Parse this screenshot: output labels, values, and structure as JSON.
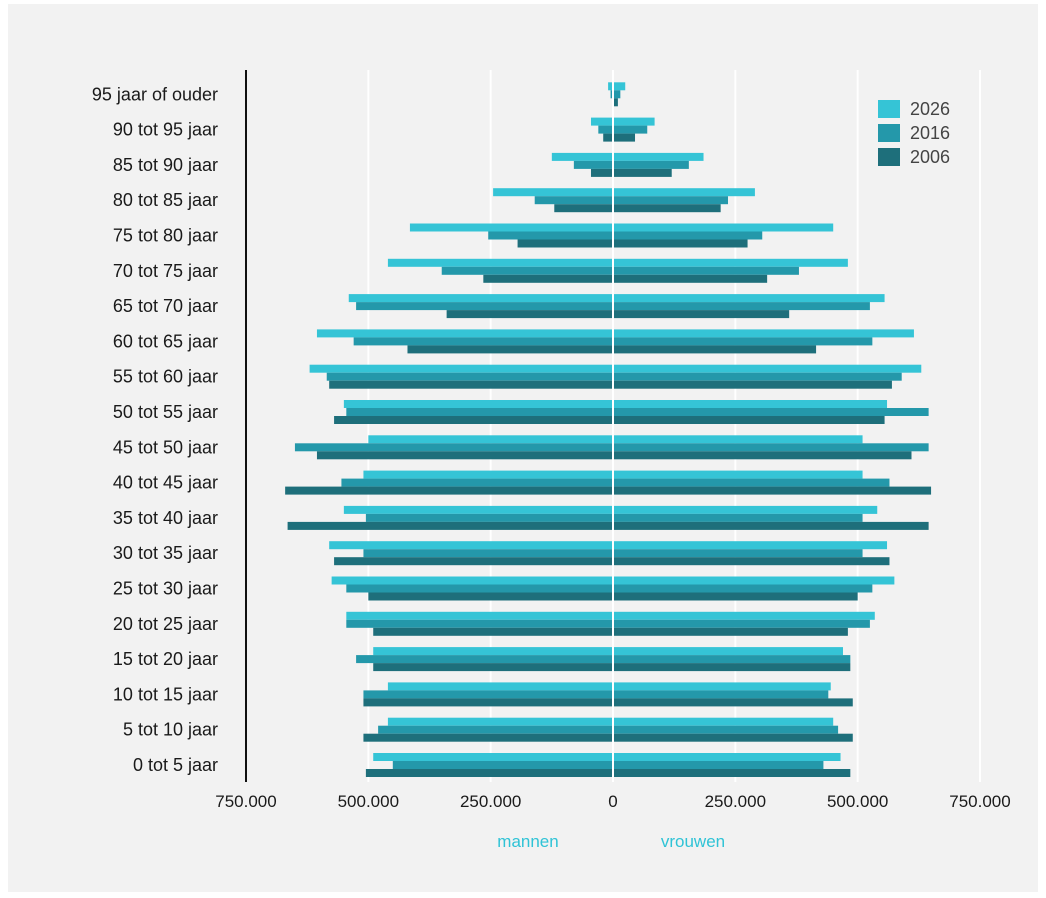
{
  "chart_data": {
    "type": "bar",
    "orientation": "horizontal",
    "layout": "population-pyramid",
    "categories": [
      "0 tot 5 jaar",
      "5 tot 10 jaar",
      "10 tot 15 jaar",
      "15 tot 20 jaar",
      "20 tot 25 jaar",
      "25 tot 30 jaar",
      "30 tot 35 jaar",
      "35 tot 40 jaar",
      "40 tot 45 jaar",
      "45 tot 50 jaar",
      "50 tot 55 jaar",
      "55 tot 60 jaar",
      "60 tot 65 jaar",
      "65 tot 70 jaar",
      "70 tot 75 jaar",
      "75 tot 80 jaar",
      "80 tot 85 jaar",
      "85 tot 90 jaar",
      "90 tot 95 jaar",
      "95 jaar of ouder"
    ],
    "series": [
      {
        "name": "2026",
        "color": "#35c4d6",
        "mannen": [
          490000,
          460000,
          460000,
          490000,
          545000,
          575000,
          580000,
          550000,
          510000,
          500000,
          550000,
          620000,
          605000,
          540000,
          460000,
          415000,
          245000,
          125000,
          45000,
          10000
        ],
        "vrouwen": [
          465000,
          450000,
          445000,
          470000,
          535000,
          575000,
          560000,
          540000,
          510000,
          510000,
          560000,
          630000,
          615000,
          555000,
          480000,
          450000,
          290000,
          185000,
          85000,
          25000
        ]
      },
      {
        "name": "2016",
        "color": "#2498aa",
        "mannen": [
          450000,
          480000,
          510000,
          525000,
          545000,
          545000,
          510000,
          505000,
          555000,
          650000,
          545000,
          585000,
          530000,
          525000,
          350000,
          255000,
          160000,
          80000,
          30000,
          5000
        ],
        "vrouwen": [
          430000,
          460000,
          440000,
          485000,
          525000,
          530000,
          510000,
          510000,
          565000,
          645000,
          645000,
          590000,
          530000,
          525000,
          380000,
          305000,
          235000,
          155000,
          70000,
          15000
        ]
      },
      {
        "name": "2006",
        "color": "#1e6f7b",
        "mannen": [
          505000,
          510000,
          510000,
          490000,
          490000,
          500000,
          570000,
          665000,
          670000,
          605000,
          570000,
          580000,
          420000,
          340000,
          265000,
          195000,
          120000,
          45000,
          20000,
          0
        ],
        "vrouwen": [
          485000,
          490000,
          490000,
          485000,
          480000,
          500000,
          565000,
          645000,
          650000,
          610000,
          555000,
          570000,
          415000,
          360000,
          315000,
          275000,
          220000,
          120000,
          45000,
          10000
        ]
      }
    ],
    "x_ticks": [
      "750.000",
      "500.000",
      "250.000",
      "0",
      "250.000",
      "500.000",
      "750.000"
    ],
    "xlim": [
      -750000,
      750000
    ],
    "side_labels": {
      "left": "mannen",
      "right": "vrouwen"
    },
    "grid": true,
    "legend_position": "top-right",
    "title": "",
    "xlabel": "",
    "ylabel": ""
  }
}
